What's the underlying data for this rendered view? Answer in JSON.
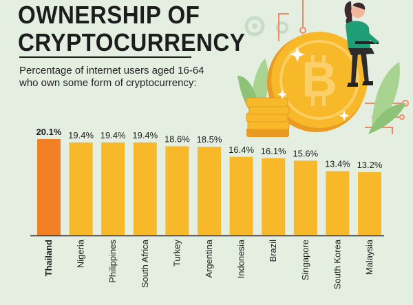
{
  "header": {
    "title_line1": "OWNERSHIP OF",
    "title_line2": "CRYPTOCURRENCY",
    "subtitle": "Percentage of internet users aged 16-64 who own some form of cryptocurrency:"
  },
  "colors": {
    "bar": "#f7b82a",
    "highlight_bar": "#f28125",
    "background": "#e4efe2",
    "text": "#1d1d1d"
  },
  "illustration": {
    "icons": [
      "bitcoin-coin-icon",
      "coin-stack-icon",
      "woman-with-laptop-icon",
      "gear-icon",
      "leaf-icon",
      "sparkle-icon"
    ]
  },
  "chart_data": {
    "type": "bar",
    "title": "",
    "xlabel": "",
    "ylabel": "",
    "highlight": "Thailand",
    "categories": [
      "Thailand",
      "Nigeria",
      "Philippines",
      "South Africa",
      "Turkey",
      "Argentina",
      "Indonesia",
      "Brazil",
      "Singapore",
      "South Korea",
      "Malaysia"
    ],
    "values": [
      20.1,
      19.4,
      19.4,
      19.4,
      18.6,
      18.5,
      16.4,
      16.1,
      15.6,
      13.4,
      13.2
    ],
    "value_labels": [
      "20.1%",
      "19.4%",
      "19.4%",
      "19.4%",
      "18.6%",
      "18.5%",
      "16.4%",
      "16.1%",
      "15.6%",
      "13.4%",
      "13.2%"
    ],
    "ylim": [
      0,
      20.1
    ],
    "grid": false
  }
}
